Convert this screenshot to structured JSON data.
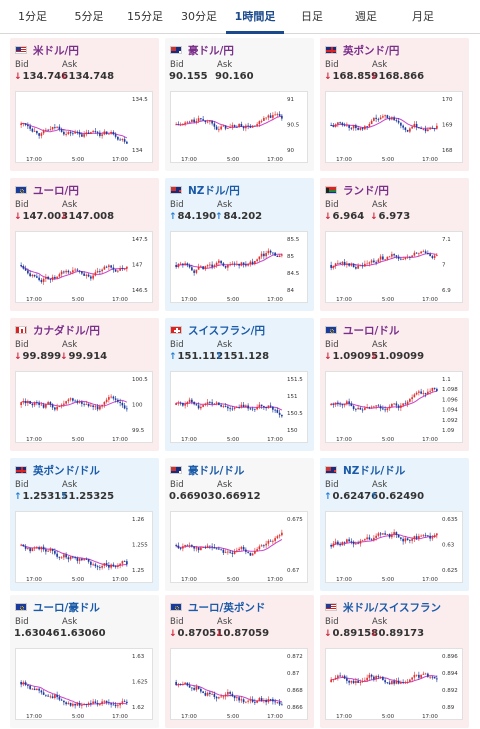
{
  "tabs": [
    {
      "label": "1分足",
      "active": false
    },
    {
      "label": "5分足",
      "active": false
    },
    {
      "label": "15分足",
      "active": false
    },
    {
      "label": "30分足",
      "active": false
    },
    {
      "label": "1時間足",
      "active": true
    },
    {
      "label": "日足",
      "active": false
    },
    {
      "label": "週足",
      "active": false
    },
    {
      "label": "月足",
      "active": false
    }
  ],
  "bid_label": "Bid",
  "ask_label": "Ask",
  "colors": {
    "up": "#1e7bd6",
    "down": "#d0263a",
    "candle_up": "#e03030",
    "candle_down": "#1a3a9c",
    "ma": "#cc44cc"
  },
  "pairs": [
    {
      "name": "米ドル/円",
      "flag": "us",
      "state": "down",
      "name_color": "purple",
      "bid": "134.746",
      "ask": "134.748",
      "bid_dir": "down",
      "ask_dir": "down",
      "y_ticks": [
        "134.5",
        "134"
      ],
      "x_ticks": [
        "17:00",
        "5:00",
        "17:00"
      ]
    },
    {
      "name": "豪ドル/円",
      "flag": "au",
      "state": "neutral",
      "name_color": "purple",
      "bid": "90.155",
      "ask": "90.160",
      "bid_dir": "none",
      "ask_dir": "none",
      "y_ticks": [
        "91",
        "90.5",
        "90"
      ],
      "x_ticks": [
        "17:00",
        "5:00",
        "17:00"
      ]
    },
    {
      "name": "英ポンド/円",
      "flag": "uk",
      "state": "down",
      "name_color": "purple",
      "bid": "168.859",
      "ask": "168.866",
      "bid_dir": "down",
      "ask_dir": "down",
      "y_ticks": [
        "170",
        "169",
        "168"
      ],
      "x_ticks": [
        "17:00",
        "5:00",
        "17:00"
      ]
    },
    {
      "name": "ユーロ/円",
      "flag": "eu",
      "state": "down",
      "name_color": "purple",
      "bid": "147.003",
      "ask": "147.008",
      "bid_dir": "down",
      "ask_dir": "down",
      "y_ticks": [
        "147.5",
        "147",
        "146.5"
      ],
      "x_ticks": [
        "17:00",
        "5:00",
        "17:00"
      ]
    },
    {
      "name": "NZドル/円",
      "flag": "nz",
      "state": "up",
      "name_color": "blue",
      "bid": "84.190",
      "ask": "84.202",
      "bid_dir": "up",
      "ask_dir": "up",
      "y_ticks": [
        "85.5",
        "85",
        "84.5",
        "84"
      ],
      "x_ticks": [
        "17:00",
        "5:00",
        "17:00"
      ]
    },
    {
      "name": "ランド/円",
      "flag": "za",
      "state": "down",
      "name_color": "purple",
      "bid": "6.964",
      "ask": "6.973",
      "bid_dir": "down",
      "ask_dir": "down",
      "y_ticks": [
        "7.1",
        "7",
        "6.9"
      ],
      "x_ticks": [
        "17:00",
        "5:00",
        "17:00"
      ]
    },
    {
      "name": "カナダドル/円",
      "flag": "ca",
      "state": "down",
      "name_color": "purple",
      "bid": "99.899",
      "ask": "99.914",
      "bid_dir": "down",
      "ask_dir": "down",
      "y_ticks": [
        "100.5",
        "100",
        "99.5"
      ],
      "x_ticks": [
        "17:00",
        "5:00",
        "17:00"
      ]
    },
    {
      "name": "スイスフラン/円",
      "flag": "ch",
      "state": "up",
      "name_color": "blue",
      "bid": "151.112",
      "ask": "151.128",
      "bid_dir": "up",
      "ask_dir": "up",
      "y_ticks": [
        "151.5",
        "151",
        "150.5",
        "150"
      ],
      "x_ticks": [
        "17:00",
        "5:00",
        "17:00"
      ]
    },
    {
      "name": "ユーロ/ドル",
      "flag": "eu",
      "state": "down",
      "name_color": "purple",
      "bid": "1.09095",
      "ask": "1.09099",
      "bid_dir": "down",
      "ask_dir": "down",
      "y_ticks": [
        "1.1",
        "1.098",
        "1.096",
        "1.094",
        "1.092",
        "1.09"
      ],
      "x_ticks": [
        "17:00",
        "5:00",
        "17:00"
      ]
    },
    {
      "name": "英ポンド/ドル",
      "flag": "uk",
      "state": "up",
      "name_color": "blue",
      "bid": "1.25315",
      "ask": "1.25325",
      "bid_dir": "up",
      "ask_dir": "up",
      "y_ticks": [
        "1.26",
        "1.255",
        "1.25"
      ],
      "x_ticks": [
        "17:00",
        "5:00",
        "17:00"
      ]
    },
    {
      "name": "豪ドル/ドル",
      "flag": "au",
      "state": "neutral",
      "name_color": "blue",
      "bid": "0.66903",
      "ask": "0.66912",
      "bid_dir": "none",
      "ask_dir": "none",
      "y_ticks": [
        "0.675",
        "0.67"
      ],
      "x_ticks": [
        "17:00",
        "5:00",
        "17:00"
      ]
    },
    {
      "name": "NZドル/ドル",
      "flag": "nz",
      "state": "up",
      "name_color": "blue",
      "bid": "0.62476",
      "ask": "0.62490",
      "bid_dir": "up",
      "ask_dir": "up",
      "y_ticks": [
        "0.635",
        "0.63",
        "0.625"
      ],
      "x_ticks": [
        "17:00",
        "5:00",
        "17:00"
      ]
    },
    {
      "name": "ユーロ/豪ドル",
      "flag": "eu",
      "state": "neutral",
      "name_color": "blue",
      "bid": "1.63046",
      "ask": "1.63060",
      "bid_dir": "none",
      "ask_dir": "none",
      "y_ticks": [
        "1.63",
        "1.625",
        "1.62"
      ],
      "x_ticks": [
        "17:00",
        "5:00",
        "17:00"
      ]
    },
    {
      "name": "ユーロ/英ポンド",
      "flag": "eu",
      "state": "down",
      "name_color": "blue",
      "bid": "0.87051",
      "ask": "0.87059",
      "bid_dir": "down",
      "ask_dir": "down",
      "y_ticks": [
        "0.872",
        "0.87",
        "0.868",
        "0.866"
      ],
      "x_ticks": [
        "17:00",
        "5:00",
        "17:00"
      ]
    },
    {
      "name": "米ドル/スイスフラン",
      "flag": "us",
      "state": "down",
      "name_color": "blue",
      "bid": "0.89158",
      "ask": "0.89173",
      "bid_dir": "down",
      "ask_dir": "down",
      "y_ticks": [
        "0.896",
        "0.894",
        "0.892",
        "0.89"
      ],
      "x_ticks": [
        "17:00",
        "5:00",
        "17:00"
      ]
    }
  ]
}
